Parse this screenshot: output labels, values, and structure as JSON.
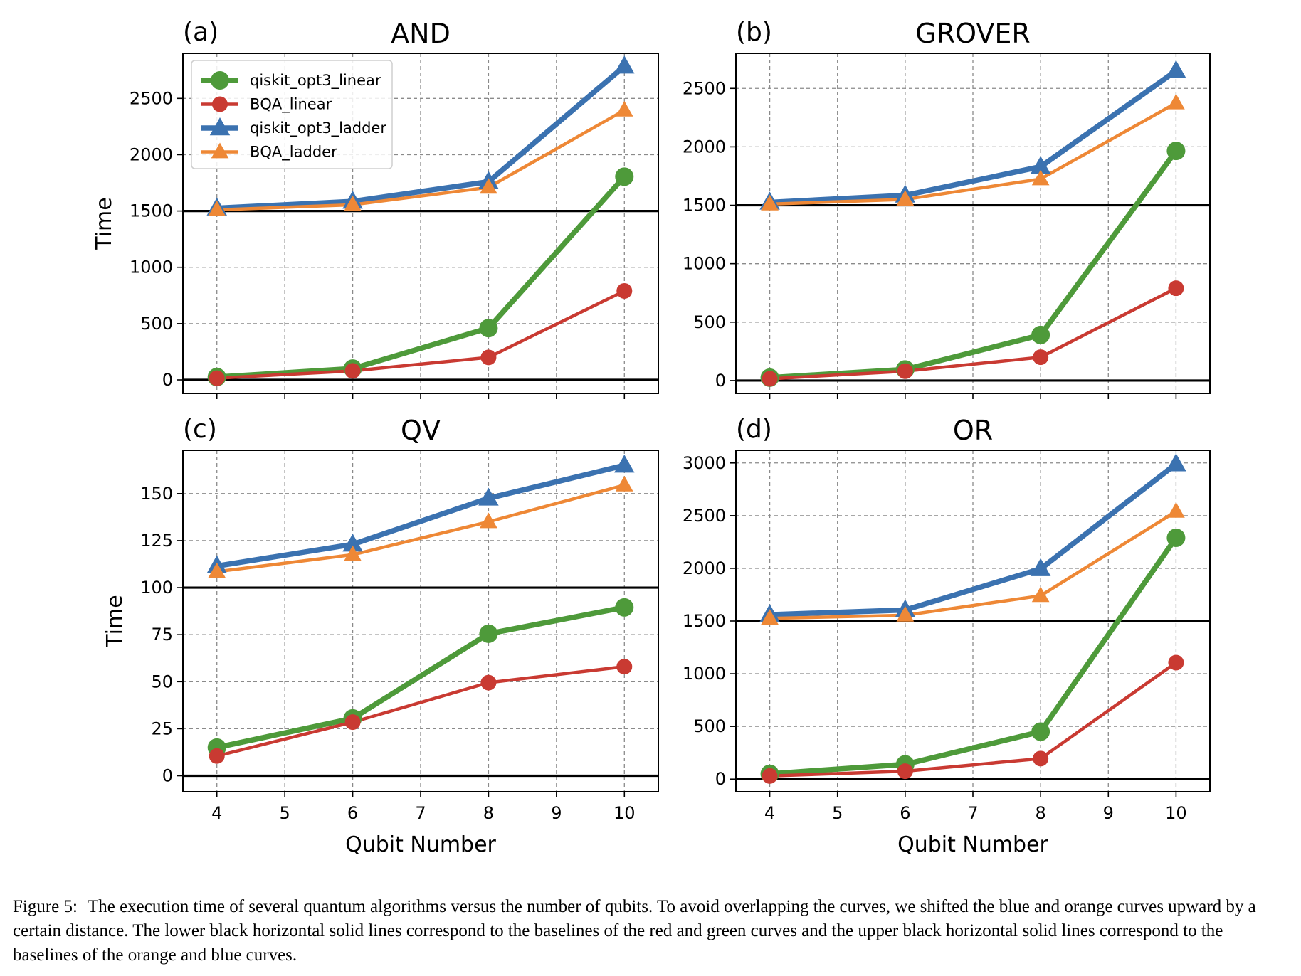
{
  "caption": {
    "label": "Figure 5:",
    "text": "The execution time of several quantum algorithms versus the number of qubits. To avoid overlapping the curves, we shifted the blue and orange curves upward by a certain distance. The lower black horizontal solid lines correspond to the baselines of the red and green curves and the upper black horizontal solid lines correspond to the baselines of the orange and blue curves."
  },
  "colors": {
    "qiskit_opt3_linear": "#4e9a3a",
    "BQA_linear": "#c93a32",
    "qiskit_opt3_ladder": "#3b72b0",
    "BQA_ladder": "#ee8836"
  },
  "chart_data": [
    {
      "type": "line",
      "panel": "(a)",
      "title": "AND",
      "xlabel": "",
      "ylabel": "Time",
      "x": [
        4,
        6,
        8,
        10
      ],
      "xlim": [
        3.5,
        10.5
      ],
      "xticks": [
        4,
        5,
        6,
        7,
        8,
        9,
        10
      ],
      "ylim": [
        -120,
        2900
      ],
      "yticks": [
        0,
        500,
        1000,
        1500,
        2000,
        2500
      ],
      "baselines": [
        0,
        1500
      ],
      "grid": true,
      "legend": "top-left",
      "series": [
        {
          "name": "qiskit_opt3_linear",
          "marker": "circle",
          "values": [
            25,
            100,
            460,
            1805
          ]
        },
        {
          "name": "BQA_linear",
          "marker": "circle",
          "values": [
            15,
            80,
            200,
            790
          ]
        },
        {
          "name": "qiskit_opt3_ladder",
          "marker": "triangle",
          "values": [
            1525,
            1585,
            1760,
            2785
          ]
        },
        {
          "name": "BQA_ladder",
          "marker": "triangle",
          "values": [
            1510,
            1555,
            1710,
            2395
          ]
        }
      ]
    },
    {
      "type": "line",
      "panel": "(b)",
      "title": "GROVER",
      "xlabel": "",
      "ylabel": "",
      "x": [
        4,
        6,
        8,
        10
      ],
      "xlim": [
        3.5,
        10.5
      ],
      "xticks": [
        4,
        5,
        6,
        7,
        8,
        9,
        10
      ],
      "ylim": [
        -110,
        2800
      ],
      "yticks": [
        0,
        500,
        1000,
        1500,
        2000,
        2500
      ],
      "baselines": [
        0,
        1500
      ],
      "grid": true,
      "legend": "",
      "series": [
        {
          "name": "qiskit_opt3_linear",
          "marker": "circle",
          "values": [
            25,
            95,
            390,
            1965
          ]
        },
        {
          "name": "BQA_linear",
          "marker": "circle",
          "values": [
            15,
            80,
            200,
            790
          ]
        },
        {
          "name": "qiskit_opt3_ladder",
          "marker": "triangle",
          "values": [
            1525,
            1585,
            1830,
            2650
          ]
        },
        {
          "name": "BQA_ladder",
          "marker": "triangle",
          "values": [
            1510,
            1550,
            1725,
            2375
          ]
        }
      ]
    },
    {
      "type": "line",
      "panel": "(c)",
      "title": "QV",
      "xlabel": "Qubit Number",
      "ylabel": "Time",
      "x": [
        4,
        6,
        8,
        10
      ],
      "xlim": [
        3.5,
        10.5
      ],
      "xticks": [
        4,
        5,
        6,
        7,
        8,
        9,
        10
      ],
      "ylim": [
        -8.5,
        173
      ],
      "yticks": [
        0,
        25,
        50,
        75,
        100,
        125,
        150
      ],
      "baselines": [
        0,
        100
      ],
      "grid": true,
      "legend": "",
      "series": [
        {
          "name": "qiskit_opt3_linear",
          "marker": "circle",
          "values": [
            15,
            30.5,
            75.5,
            89.5
          ]
        },
        {
          "name": "BQA_linear",
          "marker": "circle",
          "values": [
            10.5,
            28.5,
            49.5,
            58
          ]
        },
        {
          "name": "qiskit_opt3_ladder",
          "marker": "triangle",
          "values": [
            111.5,
            123,
            147.5,
            165
          ]
        },
        {
          "name": "BQA_ladder",
          "marker": "triangle",
          "values": [
            108.5,
            117.5,
            135,
            154.5
          ]
        }
      ]
    },
    {
      "type": "line",
      "panel": "(d)",
      "title": "OR",
      "xlabel": "Qubit Number",
      "ylabel": "",
      "x": [
        4,
        6,
        8,
        10
      ],
      "xlim": [
        3.5,
        10.5
      ],
      "xticks": [
        4,
        5,
        6,
        7,
        8,
        9,
        10
      ],
      "ylim": [
        -120,
        3120
      ],
      "yticks": [
        0,
        500,
        1000,
        1500,
        2000,
        2500,
        3000
      ],
      "baselines": [
        0,
        1500
      ],
      "grid": true,
      "legend": "",
      "series": [
        {
          "name": "qiskit_opt3_linear",
          "marker": "circle",
          "values": [
            50,
            140,
            450,
            2290
          ]
        },
        {
          "name": "BQA_linear",
          "marker": "circle",
          "values": [
            30,
            75,
            195,
            1105
          ]
        },
        {
          "name": "qiskit_opt3_ladder",
          "marker": "triangle",
          "values": [
            1560,
            1605,
            1995,
            2990
          ]
        },
        {
          "name": "BQA_ladder",
          "marker": "triangle",
          "values": [
            1525,
            1555,
            1740,
            2540
          ]
        }
      ]
    }
  ]
}
